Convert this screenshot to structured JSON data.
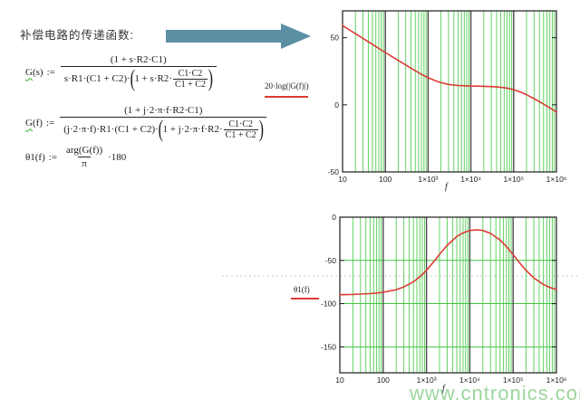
{
  "page": {
    "title_text": "补偿电路的传递函数:",
    "watermark": "www.cntronics.com"
  },
  "colors": {
    "curve": "#dd3b33",
    "grid_minor": "#40c840",
    "grid_decade": "#4a4a4a",
    "frame": "#1a1a1a",
    "arrow": "#5b8fa3",
    "legend_line": "#dd3b33",
    "separator": "#c8c8c8",
    "watermark": "#84cc84",
    "squiggle": "#2bb52b"
  },
  "formulas": {
    "gs": {
      "lhs_var": "G",
      "lhs_rest": "(s)",
      "assign": ":=",
      "num": "(1 + s·R2·C1)",
      "den_prefix": "s·R1·(C1 + C2)·",
      "inner_prefix": "1 + s·R2·",
      "inner_num": "C1·C2",
      "inner_den": "C1 + C2"
    },
    "gf": {
      "lhs_var": "G",
      "lhs_rest": "(f)",
      "assign": ":=",
      "num": "(1 + j·2·π·f·R2·C1)",
      "den_prefix": "(j·2·π·f)·R1·(C1 + C2)·",
      "inner_prefix": "1 + j·2·π·f·R2·",
      "inner_num": "C1·C2",
      "inner_den": "C1 + C2"
    },
    "theta": {
      "lhs": "θ1(f)",
      "assign": ":=",
      "num": "arg(G(f))",
      "den": "π",
      "mult": "·180"
    }
  },
  "chart_data": [
    {
      "type": "line",
      "id": "bode-magnitude",
      "legend": "20·log(|G(f)|)",
      "xlabel": "f",
      "x_scale": "log",
      "x_range": [
        10,
        1000000
      ],
      "y_range": [
        -50,
        70
      ],
      "h_grid": false,
      "x_ticks": [
        {
          "v": 10,
          "label": "10"
        },
        {
          "v": 100,
          "label": "100"
        },
        {
          "v": 1000,
          "label": "1×10³"
        },
        {
          "v": 10000,
          "label": "1×10⁴"
        },
        {
          "v": 100000,
          "label": "1×10⁵"
        },
        {
          "v": 1000000,
          "label": "1×10⁶"
        }
      ],
      "y_ticks": [
        {
          "v": 50,
          "label": "50"
        },
        {
          "v": 0,
          "label": "0"
        },
        {
          "v": -50,
          "label": "-50"
        }
      ],
      "series": [
        {
          "name": "20·log(|G(f)|)",
          "color": "#dd3b33",
          "x": [
            10,
            15,
            20,
            30,
            50,
            70,
            100,
            150,
            200,
            300,
            500,
            700,
            1000,
            1500,
            2000,
            3000,
            5000,
            7000,
            10000,
            15000,
            20000,
            30000,
            50000,
            70000,
            100000,
            150000,
            200000,
            300000,
            500000,
            700000,
            1000000
          ],
          "y": [
            59,
            55.5,
            53,
            49.5,
            45,
            42.1,
            39,
            35.5,
            33.1,
            29.7,
            25.4,
            22.7,
            20.2,
            17.8,
            16.5,
            15.2,
            14.4,
            14.2,
            14,
            13.9,
            13.8,
            13.6,
            13.1,
            12.4,
            11.3,
            9.3,
            7.5,
            4.6,
            0.5,
            -2.3,
            -5.3
          ]
        }
      ]
    },
    {
      "type": "line",
      "id": "bode-phase",
      "legend": "θ1(f)",
      "xlabel": "f",
      "x_scale": "log",
      "x_range": [
        10,
        1000000
      ],
      "y_range": [
        -180,
        0
      ],
      "h_grid": true,
      "x_ticks": [
        {
          "v": 10,
          "label": "10"
        },
        {
          "v": 100,
          "label": "100"
        },
        {
          "v": 1000,
          "label": "1×10³"
        },
        {
          "v": 10000,
          "label": "1×10⁴"
        },
        {
          "v": 100000,
          "label": "1×10⁵"
        },
        {
          "v": 1000000,
          "label": "1×10⁶"
        }
      ],
      "y_ticks": [
        {
          "v": 0,
          "label": "0"
        },
        {
          "v": -50,
          "label": "-50"
        },
        {
          "v": -100,
          "label": "-100"
        },
        {
          "v": -150,
          "label": "-150"
        }
      ],
      "series": [
        {
          "name": "θ1(f)",
          "color": "#dd3b33",
          "x": [
            10,
            15,
            20,
            30,
            50,
            70,
            100,
            150,
            200,
            300,
            500,
            700,
            1000,
            1500,
            2000,
            3000,
            5000,
            7000,
            10000,
            15000,
            20000,
            30000,
            50000,
            70000,
            100000,
            150000,
            200000,
            300000,
            500000,
            700000,
            1000000
          ],
          "y": [
            -89.7,
            -89.5,
            -89.4,
            -89,
            -88.4,
            -87.8,
            -86.9,
            -85.2,
            -83.8,
            -80.7,
            -74.7,
            -69.1,
            -61.5,
            -51,
            -43,
            -32.5,
            -22.4,
            -18.1,
            -15.4,
            -14.6,
            -15.4,
            -18.7,
            -26.5,
            -33.9,
            -43.3,
            -54.4,
            -61.7,
            -70.2,
            -77.8,
            -81.2,
            -83.8
          ]
        }
      ]
    }
  ]
}
